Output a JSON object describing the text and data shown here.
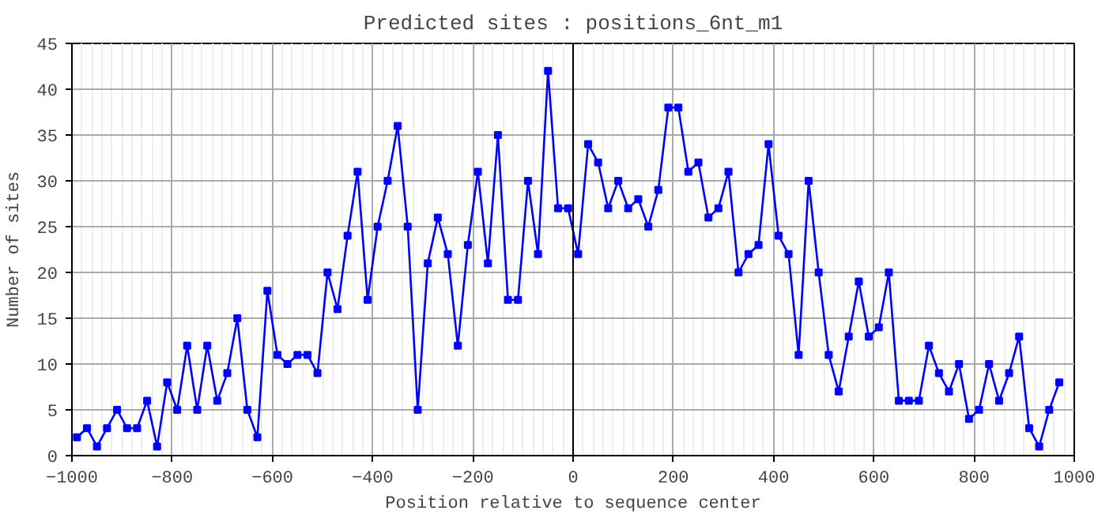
{
  "chart_data": {
    "type": "line",
    "title": "Predicted sites : positions_6nt_m1",
    "xlabel": "Position relative to sequence center",
    "ylabel": "Number of sites",
    "x": [
      -990,
      -970,
      -950,
      -930,
      -910,
      -890,
      -870,
      -850,
      -830,
      -810,
      -790,
      -770,
      -750,
      -730,
      -710,
      -690,
      -670,
      -650,
      -630,
      -610,
      -590,
      -570,
      -550,
      -530,
      -510,
      -490,
      -470,
      -450,
      -430,
      -410,
      -390,
      -370,
      -350,
      -330,
      -310,
      -290,
      -270,
      -250,
      -230,
      -210,
      -190,
      -170,
      -150,
      -130,
      -110,
      -90,
      -70,
      -50,
      -30,
      -10,
      10,
      30,
      50,
      70,
      90,
      110,
      130,
      150,
      170,
      190,
      210,
      230,
      250,
      270,
      290,
      310,
      330,
      350,
      370,
      390,
      410,
      430,
      450,
      470,
      490,
      510,
      530,
      550,
      570,
      590,
      610,
      630,
      650,
      670,
      690,
      710,
      730,
      750,
      770,
      790,
      810,
      830,
      850,
      870,
      890,
      910,
      930,
      950,
      970
    ],
    "series": [
      {
        "color": "#0000ff",
        "values": [
          2,
          3,
          1,
          3,
          5,
          3,
          3,
          6,
          1,
          8,
          5,
          12,
          5,
          12,
          6,
          9,
          15,
          5,
          2,
          18,
          11,
          10,
          11,
          11,
          9,
          20,
          16,
          24,
          31,
          17,
          25,
          30,
          36,
          25,
          5,
          21,
          26,
          22,
          12,
          23,
          31,
          21,
          35,
          17,
          17,
          30,
          22,
          42,
          27,
          27,
          22,
          34,
          32,
          27,
          30,
          27,
          28,
          25,
          29,
          38,
          38,
          31,
          32,
          26,
          27,
          31,
          20,
          22,
          23,
          34,
          24,
          22,
          11,
          30,
          20,
          11,
          7,
          13,
          19,
          13,
          14,
          20,
          6,
          6,
          6,
          12,
          9,
          7,
          10,
          4,
          5,
          10,
          6,
          9,
          13,
          3,
          1,
          5,
          8
        ]
      }
    ],
    "xlim": [
      -1000,
      1000
    ],
    "xticks": [
      -1000,
      -800,
      -600,
      -400,
      -200,
      0,
      200,
      400,
      600,
      800,
      1000
    ],
    "ylim": [
      0,
      45
    ],
    "yticks": [
      0,
      5,
      10,
      15,
      20,
      25,
      30,
      35,
      40,
      45
    ],
    "ref_lines": [
      {
        "axis": "x",
        "value": 0,
        "color": "#000000"
      }
    ],
    "grid": true,
    "marker": "square",
    "line_style": "solid"
  }
}
